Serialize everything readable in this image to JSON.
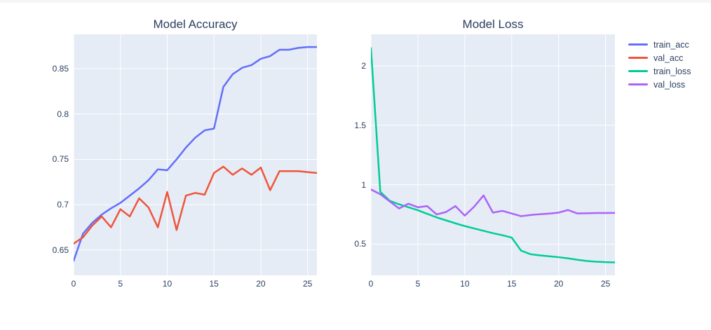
{
  "figure": {
    "background": "#ffffff",
    "plot_background": "#e5ecf6",
    "grid_color": "#ffffff",
    "text_color": "#2a3f5f"
  },
  "chart_data": [
    {
      "type": "line",
      "title": "Model Accuracy",
      "xlabel": "",
      "ylabel": "",
      "grid": true,
      "xlim": [
        0,
        26
      ],
      "ylim": [
        0.622,
        0.888
      ],
      "xticks": [
        0,
        5,
        10,
        15,
        20,
        25
      ],
      "xtick_labels": [
        "0",
        "5",
        "10",
        "15",
        "20",
        "25"
      ],
      "yticks": [
        0.65,
        0.7,
        0.75,
        0.8,
        0.85
      ],
      "ytick_labels": [
        "0.65",
        "0.7",
        "0.75",
        "0.8",
        "0.85"
      ],
      "x": [
        0,
        1,
        2,
        3,
        4,
        5,
        6,
        7,
        8,
        9,
        10,
        11,
        12,
        13,
        14,
        15,
        16,
        17,
        18,
        19,
        20,
        21,
        22,
        23,
        24,
        25,
        26
      ],
      "series": [
        {
          "name": "train_acc",
          "color": "#636EFA",
          "values": [
            0.638,
            0.668,
            0.68,
            0.689,
            0.696,
            0.702,
            0.71,
            0.718,
            0.727,
            0.739,
            0.738,
            0.75,
            0.763,
            0.774,
            0.782,
            0.784,
            0.83,
            0.844,
            0.851,
            0.854,
            0.861,
            0.864,
            0.871,
            0.871,
            0.873,
            0.874,
            0.874
          ]
        },
        {
          "name": "val_acc",
          "color": "#EF553B",
          "values": [
            0.657,
            0.664,
            0.677,
            0.687,
            0.675,
            0.695,
            0.687,
            0.707,
            0.697,
            0.675,
            0.714,
            0.672,
            0.71,
            0.713,
            0.711,
            0.735,
            0.742,
            0.733,
            0.74,
            0.733,
            0.741,
            0.716,
            0.737,
            0.737,
            0.737,
            0.736,
            0.735
          ]
        }
      ]
    },
    {
      "type": "line",
      "title": "Model Loss",
      "xlabel": "",
      "ylabel": "",
      "grid": true,
      "xlim": [
        0,
        26
      ],
      "ylim": [
        0.237,
        2.266
      ],
      "xticks": [
        0,
        5,
        10,
        15,
        20,
        25
      ],
      "xtick_labels": [
        "0",
        "5",
        "10",
        "15",
        "20",
        "25"
      ],
      "yticks": [
        0.5,
        1,
        1.5,
        2
      ],
      "ytick_labels": [
        "0.5",
        "1",
        "1.5",
        "2"
      ],
      "x": [
        0,
        1,
        2,
        3,
        4,
        5,
        6,
        7,
        8,
        9,
        10,
        11,
        12,
        13,
        14,
        15,
        16,
        17,
        18,
        19,
        20,
        21,
        22,
        23,
        24,
        25,
        26
      ],
      "series": [
        {
          "name": "train_loss",
          "color": "#00CC96",
          "values": [
            2.15,
            0.94,
            0.865,
            0.835,
            0.81,
            0.785,
            0.755,
            0.725,
            0.7,
            0.675,
            0.652,
            0.632,
            0.612,
            0.592,
            0.575,
            0.555,
            0.445,
            0.415,
            0.405,
            0.398,
            0.39,
            0.38,
            0.368,
            0.358,
            0.352,
            0.348,
            0.346
          ]
        },
        {
          "name": "val_loss",
          "color": "#AB63FA",
          "values": [
            0.96,
            0.92,
            0.86,
            0.8,
            0.84,
            0.81,
            0.82,
            0.75,
            0.77,
            0.82,
            0.74,
            0.815,
            0.91,
            0.765,
            0.78,
            0.758,
            0.735,
            0.745,
            0.752,
            0.757,
            0.765,
            0.787,
            0.758,
            0.76,
            0.762,
            0.762,
            0.763
          ]
        }
      ]
    }
  ],
  "legend": {
    "position": "right"
  }
}
